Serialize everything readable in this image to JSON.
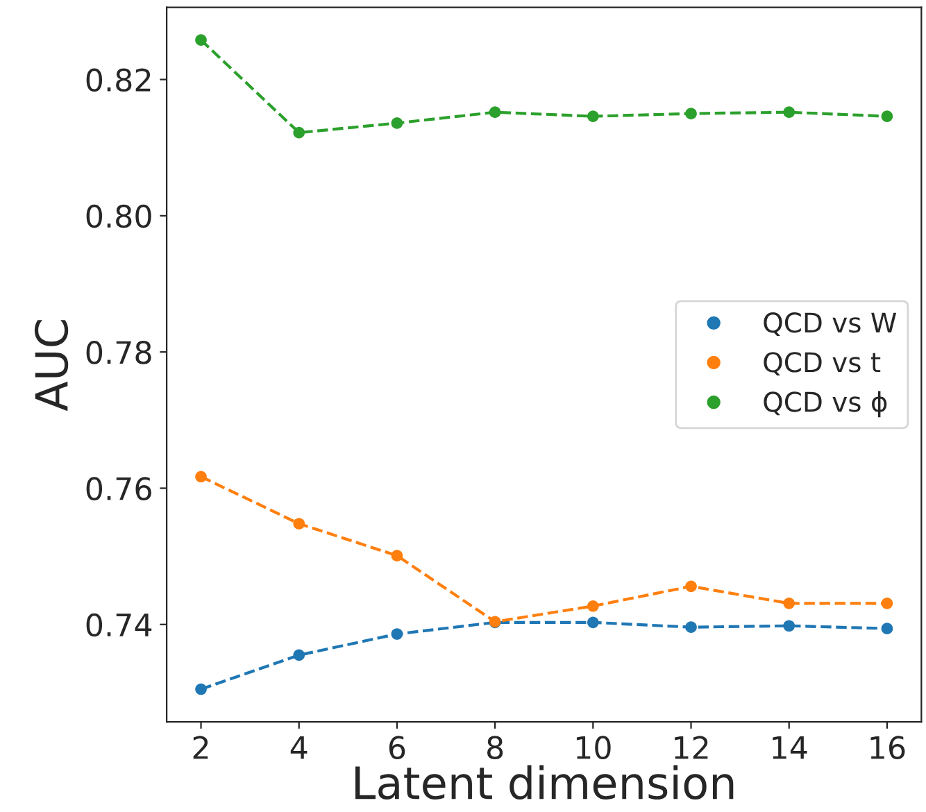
{
  "chart_data": {
    "type": "line",
    "xlabel": "Latent dimension",
    "ylabel": "AUC",
    "x": [
      2,
      4,
      6,
      8,
      10,
      12,
      14,
      16
    ],
    "series": [
      {
        "name": "QCD vs W",
        "color": "#1f77b4",
        "values": [
          0.7305,
          0.7355,
          0.7386,
          0.7403,
          0.7403,
          0.7396,
          0.7398,
          0.7394
        ]
      },
      {
        "name": "QCD vs t",
        "color": "#ff7f0e",
        "values": [
          0.7617,
          0.7548,
          0.7501,
          0.7404,
          0.7427,
          0.7456,
          0.7431,
          0.7431
        ]
      },
      {
        "name": "QCD vs ϕ",
        "color": "#2ca02c",
        "values": [
          0.8258,
          0.8122,
          0.8136,
          0.8152,
          0.8146,
          0.815,
          0.8152,
          0.8146
        ]
      }
    ],
    "xlim": [
      1.3,
      16.7
    ],
    "xticks": [
      2,
      4,
      6,
      8,
      10,
      12,
      14,
      16
    ],
    "ylim": [
      0.7257,
      0.8306
    ],
    "yticks": [
      {
        "value": 0.74,
        "label": "0.74"
      },
      {
        "value": 0.76,
        "label": "0.76"
      },
      {
        "value": 0.78,
        "label": "0.78"
      },
      {
        "value": 0.8,
        "label": "0.80"
      },
      {
        "value": 0.82,
        "label": "0.82"
      }
    ],
    "marker": "circle",
    "line_style": "dashed",
    "grid": false,
    "legend": "right"
  }
}
